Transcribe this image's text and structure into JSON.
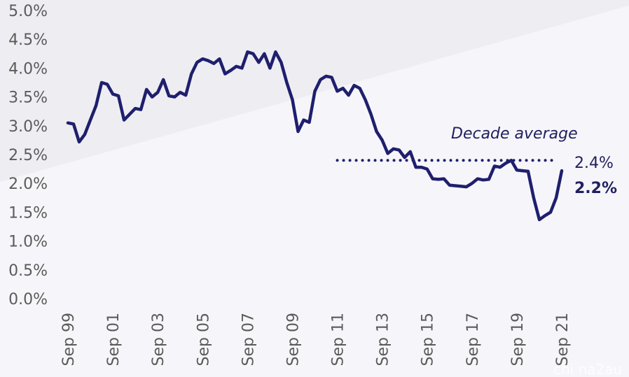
{
  "chart_data": {
    "type": "line",
    "ylim": [
      0,
      5
    ],
    "y_ticks": [
      "0.0%",
      "0.5%",
      "1.0%",
      "1.5%",
      "2.0%",
      "2.5%",
      "3.0%",
      "3.5%",
      "4.0%",
      "4.5%",
      "5.0%"
    ],
    "x_ticks": [
      "Sep 99",
      "Sep 01",
      "Sep 03",
      "Sep 05",
      "Sep 07",
      "Sep 09",
      "Sep 11",
      "Sep 13",
      "Sep 15",
      "Sep 17",
      "Sep 19",
      "Sep 21"
    ],
    "x_tick_years": [
      1999.75,
      2001.75,
      2003.75,
      2005.75,
      2007.75,
      2009.75,
      2011.75,
      2013.75,
      2015.75,
      2017.75,
      2019.75,
      2021.75
    ],
    "xlim": [
      1999.75,
      2021.75
    ],
    "line_color": "#1f1f6e",
    "series": [
      {
        "points": [
          [
            1999.75,
            3.05
          ],
          [
            2000.0,
            3.03
          ],
          [
            2000.25,
            2.72
          ],
          [
            2000.5,
            2.85
          ],
          [
            2000.75,
            3.1
          ],
          [
            2001.0,
            3.35
          ],
          [
            2001.25,
            3.75
          ],
          [
            2001.5,
            3.72
          ],
          [
            2001.75,
            3.55
          ],
          [
            2002.0,
            3.52
          ],
          [
            2002.25,
            3.1
          ],
          [
            2002.5,
            3.2
          ],
          [
            2002.75,
            3.3
          ],
          [
            2003.0,
            3.28
          ],
          [
            2003.25,
            3.63
          ],
          [
            2003.5,
            3.5
          ],
          [
            2003.75,
            3.58
          ],
          [
            2004.0,
            3.8
          ],
          [
            2004.25,
            3.52
          ],
          [
            2004.5,
            3.5
          ],
          [
            2004.75,
            3.58
          ],
          [
            2005.0,
            3.53
          ],
          [
            2005.25,
            3.9
          ],
          [
            2005.5,
            4.1
          ],
          [
            2005.75,
            4.16
          ],
          [
            2006.0,
            4.13
          ],
          [
            2006.25,
            4.08
          ],
          [
            2006.5,
            4.16
          ],
          [
            2006.75,
            3.9
          ],
          [
            2007.0,
            3.96
          ],
          [
            2007.25,
            4.03
          ],
          [
            2007.5,
            4.0
          ],
          [
            2007.75,
            4.28
          ],
          [
            2008.0,
            4.25
          ],
          [
            2008.25,
            4.1
          ],
          [
            2008.5,
            4.25
          ],
          [
            2008.75,
            4.0
          ],
          [
            2009.0,
            4.28
          ],
          [
            2009.25,
            4.1
          ],
          [
            2009.5,
            3.75
          ],
          [
            2009.75,
            3.45
          ],
          [
            2010.0,
            2.9
          ],
          [
            2010.25,
            3.1
          ],
          [
            2010.5,
            3.06
          ],
          [
            2010.75,
            3.6
          ],
          [
            2011.0,
            3.8
          ],
          [
            2011.25,
            3.86
          ],
          [
            2011.5,
            3.84
          ],
          [
            2011.75,
            3.6
          ],
          [
            2012.0,
            3.65
          ],
          [
            2012.25,
            3.53
          ],
          [
            2012.5,
            3.7
          ],
          [
            2012.75,
            3.65
          ],
          [
            2013.0,
            3.45
          ],
          [
            2013.25,
            3.2
          ],
          [
            2013.5,
            2.9
          ],
          [
            2013.75,
            2.75
          ],
          [
            2014.0,
            2.52
          ],
          [
            2014.25,
            2.6
          ],
          [
            2014.5,
            2.58
          ],
          [
            2014.75,
            2.45
          ],
          [
            2015.0,
            2.55
          ],
          [
            2015.25,
            2.28
          ],
          [
            2015.5,
            2.28
          ],
          [
            2015.75,
            2.25
          ],
          [
            2016.0,
            2.08
          ],
          [
            2016.25,
            2.07
          ],
          [
            2016.5,
            2.08
          ],
          [
            2016.75,
            1.97
          ],
          [
            2017.0,
            1.96
          ],
          [
            2017.25,
            1.95
          ],
          [
            2017.5,
            1.94
          ],
          [
            2017.75,
            2.0
          ],
          [
            2018.0,
            2.08
          ],
          [
            2018.25,
            2.06
          ],
          [
            2018.5,
            2.07
          ],
          [
            2018.75,
            2.3
          ],
          [
            2019.0,
            2.28
          ],
          [
            2019.25,
            2.35
          ],
          [
            2019.5,
            2.4
          ],
          [
            2019.75,
            2.23
          ],
          [
            2020.0,
            2.22
          ],
          [
            2020.25,
            2.21
          ],
          [
            2020.5,
            1.75
          ],
          [
            2020.75,
            1.37
          ],
          [
            2021.0,
            1.44
          ],
          [
            2021.25,
            1.5
          ],
          [
            2021.5,
            1.75
          ],
          [
            2021.75,
            2.22
          ]
        ]
      }
    ],
    "average_line": {
      "value": 2.4,
      "x_start": 2011.75,
      "x_end": 2021.75,
      "style": "dotted"
    },
    "annotations": {
      "average_title": "Decade average",
      "average_value": "2.4%",
      "latest_value": "2.2%"
    },
    "grid": false,
    "legend": "none"
  },
  "watermark": "chi na2au"
}
